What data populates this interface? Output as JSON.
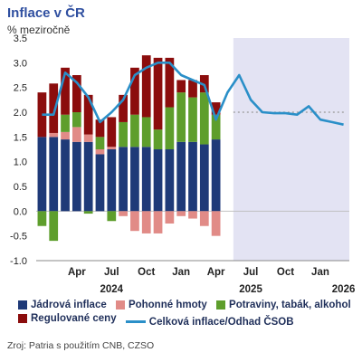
{
  "title": "Inflace v ČR",
  "subtitle": "% meziročně",
  "source": "Zroj: Patria s použitím CNB, CZSO",
  "chart_data": {
    "type": "bar",
    "stacked": true,
    "ylim": [
      -1.0,
      3.5
    ],
    "yticks": [
      "3.5",
      "3.0",
      "2.5",
      "2.0",
      "1.5",
      "1.0",
      "0.5",
      "0.0",
      "-0.5",
      "-1.0"
    ],
    "ytick_values": [
      3.5,
      3.0,
      2.5,
      2.0,
      1.5,
      1.0,
      0.5,
      0.0,
      -0.5,
      -1.0
    ],
    "months": [
      "2024-01",
      "2024-02",
      "2024-03",
      "2024-04",
      "2024-05",
      "2024-06",
      "2024-07",
      "2024-08",
      "2024-09",
      "2024-10",
      "2024-11",
      "2024-12",
      "2025-01",
      "2025-02",
      "2025-03",
      "2025-04",
      "2025-05",
      "2025-06",
      "2025-07",
      "2025-08",
      "2025-09",
      "2025-10",
      "2025-11",
      "2025-12",
      "2026-01",
      "2026-02",
      "2026-03"
    ],
    "x_tick_labels": [
      {
        "label": "Apr",
        "month_index": 3
      },
      {
        "label": "Jul",
        "month_index": 6
      },
      {
        "label": "Oct",
        "month_index": 9
      },
      {
        "label": "Jan",
        "month_index": 12
      },
      {
        "label": "Apr",
        "month_index": 15
      },
      {
        "label": "Jul",
        "month_index": 18
      },
      {
        "label": "Oct",
        "month_index": 21
      },
      {
        "label": "Jan",
        "month_index": 24
      }
    ],
    "year_labels": [
      {
        "label": "2024",
        "month_index": 6
      },
      {
        "label": "2025",
        "month_index": 18
      },
      {
        "label": "2026",
        "month_index": 26
      }
    ],
    "forecast_start_index": 16.5,
    "reference_value": 2.0,
    "bar_months": 16,
    "series": [
      {
        "name": "Jádrová inflace",
        "color": "#1f3a78",
        "values": [
          1.5,
          1.5,
          1.45,
          1.4,
          1.4,
          1.15,
          1.25,
          1.3,
          1.3,
          1.3,
          1.25,
          1.25,
          1.4,
          1.4,
          1.35,
          1.45
        ]
      },
      {
        "name": "Pohonné hmoty",
        "color": "#e18b87",
        "values": [
          0.0,
          0.08,
          0.15,
          0.3,
          0.15,
          0.1,
          0.05,
          -0.1,
          -0.4,
          -0.45,
          -0.45,
          -0.25,
          -0.1,
          -0.15,
          -0.3,
          -0.5
        ]
      },
      {
        "name": "Potraviny, tabák, alkohol",
        "color": "#5e9e2c",
        "values": [
          -0.3,
          -0.6,
          0.35,
          0.3,
          -0.05,
          0.25,
          -0.2,
          0.5,
          0.65,
          0.6,
          0.4,
          0.85,
          1.0,
          0.9,
          1.05,
          0.5
        ]
      },
      {
        "name": "Regulované ceny",
        "color": "#8b0d0d",
        "values": [
          0.9,
          1.0,
          0.95,
          0.75,
          0.8,
          0.35,
          0.6,
          0.55,
          0.95,
          1.25,
          1.45,
          1.0,
          0.25,
          0.35,
          0.35,
          0.25
        ]
      }
    ],
    "line": {
      "name": "Celková inflace/Odhad ČSOB",
      "color": "#2a8fc8",
      "values": [
        1.95,
        1.95,
        2.8,
        2.6,
        2.3,
        1.8,
        2.0,
        2.25,
        2.75,
        2.9,
        3.0,
        3.0,
        2.75,
        2.65,
        2.55,
        1.85,
        2.4,
        2.75,
        2.25,
        2.0,
        1.98,
        1.98,
        1.95,
        2.12,
        1.85,
        1.8,
        1.75
      ]
    }
  },
  "legend": {
    "items": [
      {
        "label": "Jádrová inflace",
        "color": "#1f3a78",
        "kind": "box"
      },
      {
        "label": "Pohonné hmoty",
        "color": "#e18b87",
        "kind": "box"
      },
      {
        "label": "Potraviny, tabák, alkohol",
        "color": "#5e9e2c",
        "kind": "box"
      },
      {
        "label": "Regulované ceny",
        "color": "#8b0d0d",
        "kind": "box"
      },
      {
        "label": "Celková inflace/Odhad ČSOB",
        "color": "#2a8fc8",
        "kind": "line"
      }
    ]
  }
}
